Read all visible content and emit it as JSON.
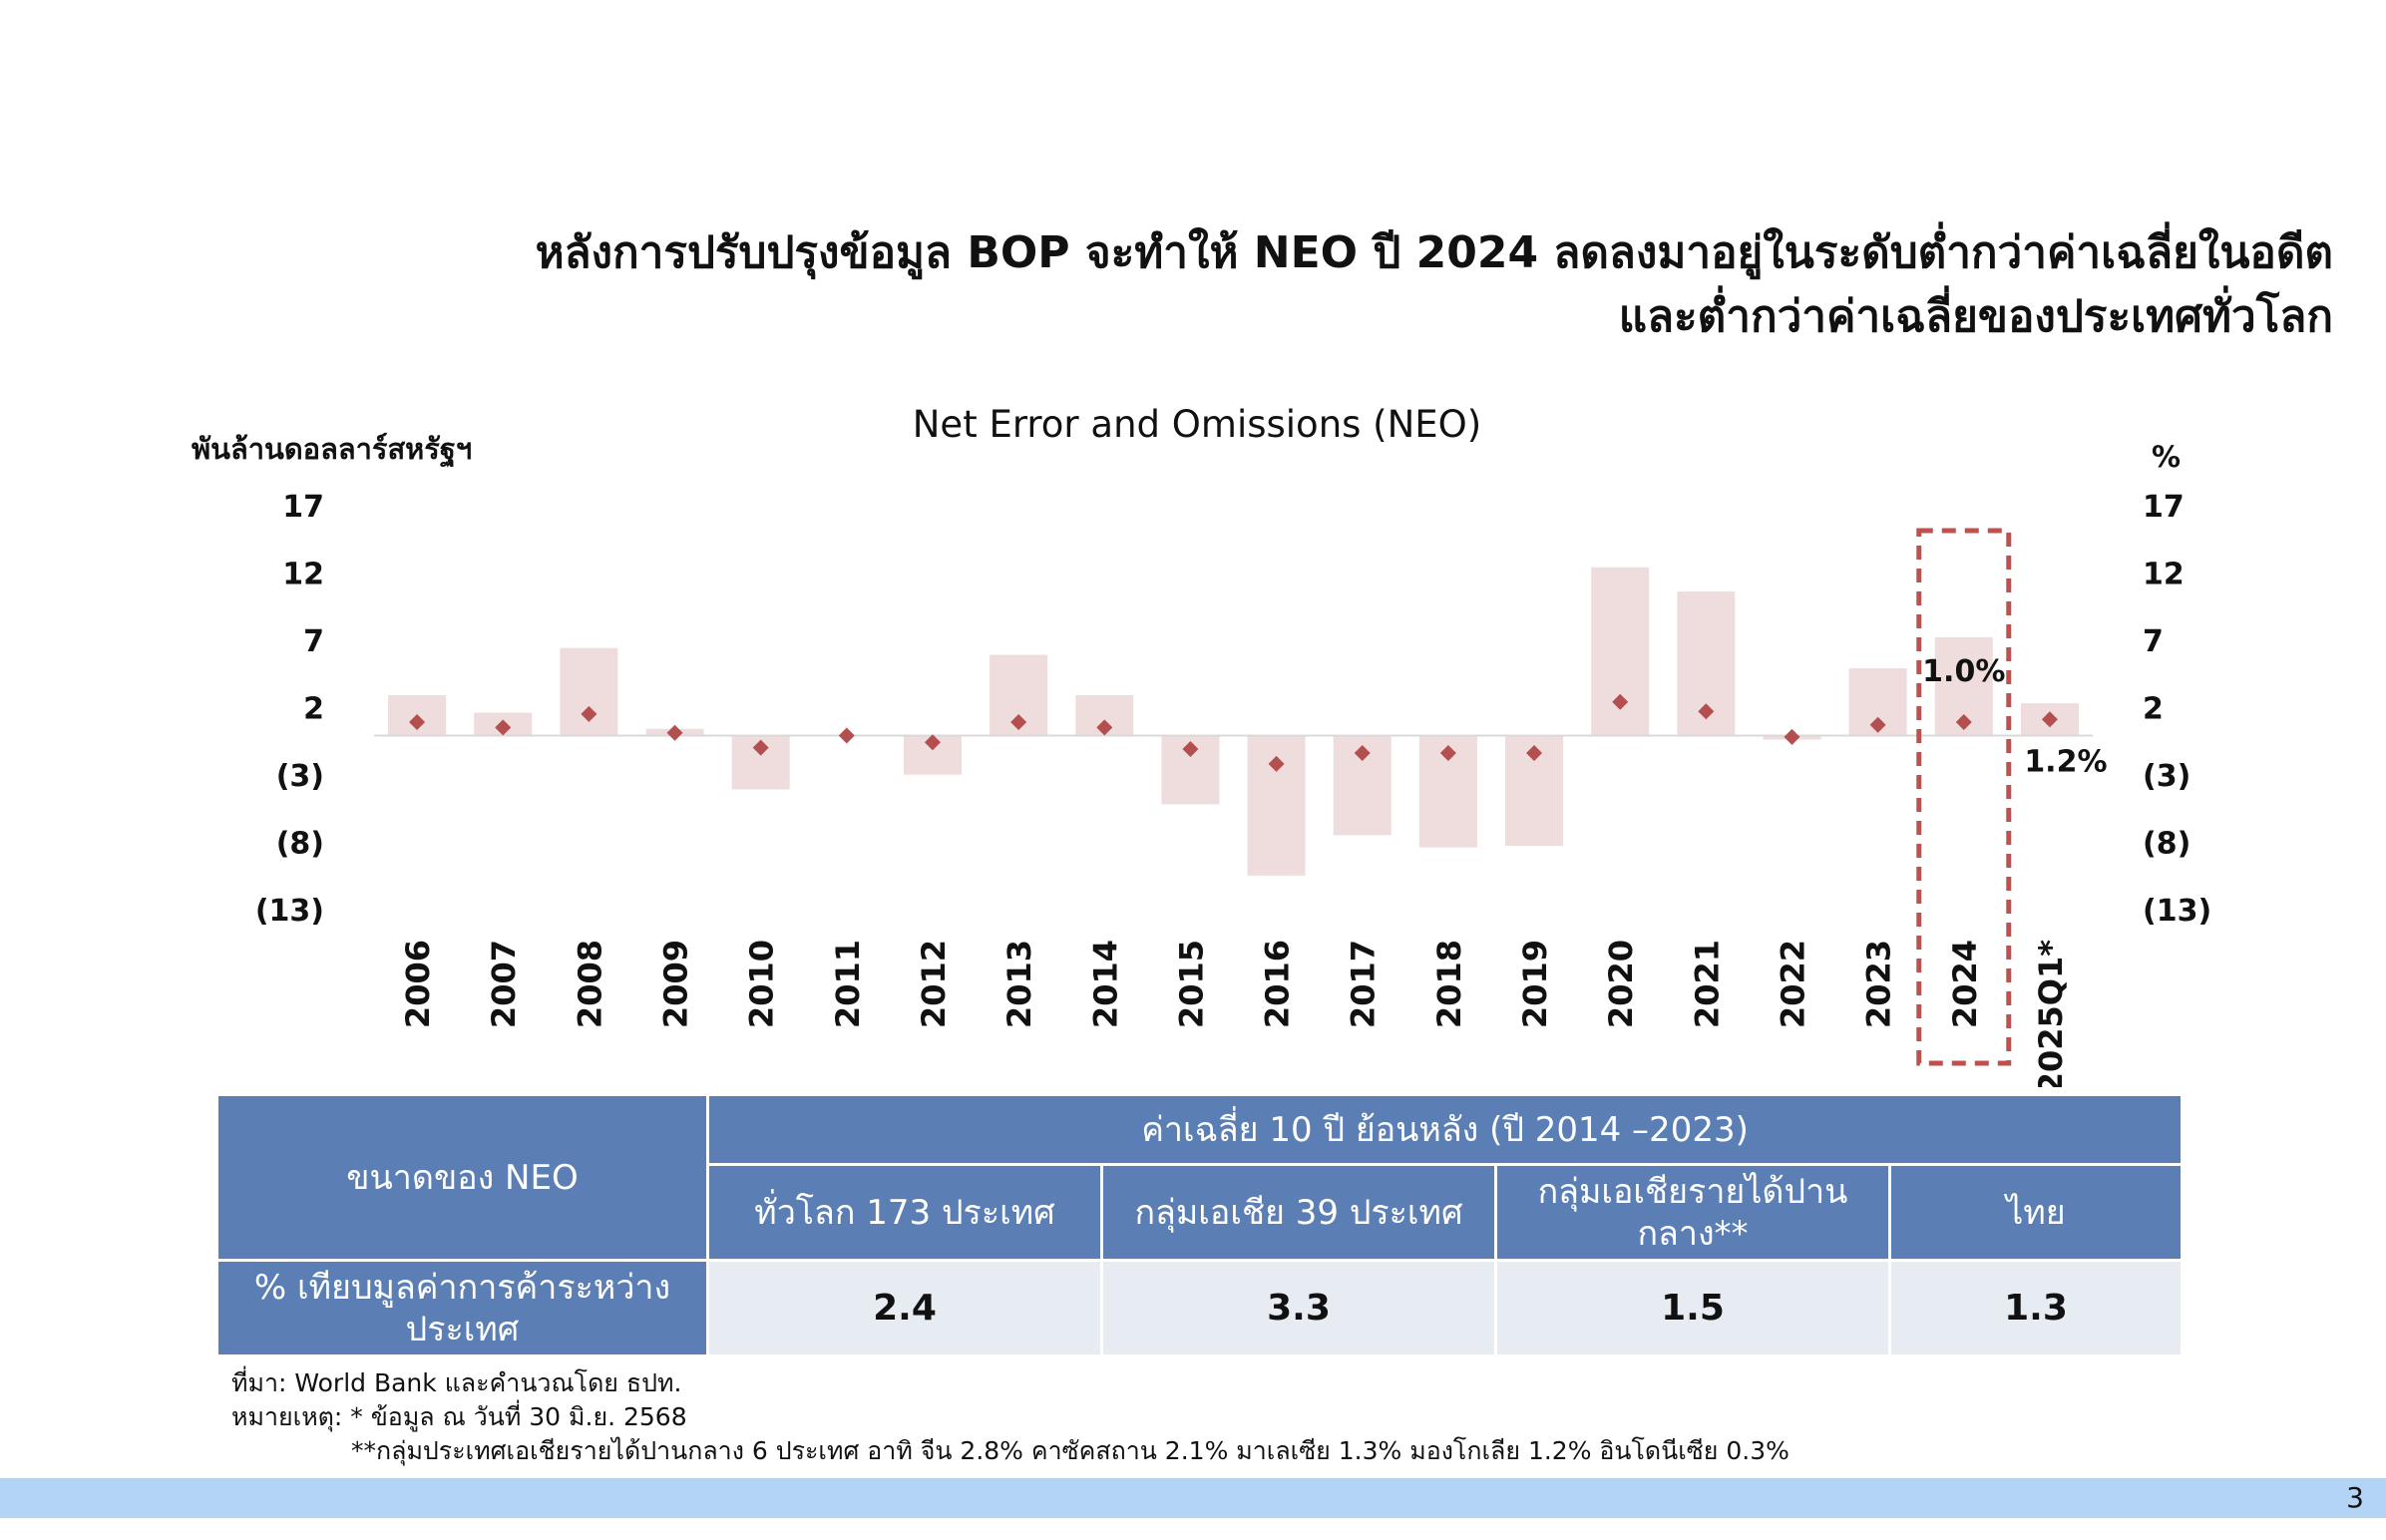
{
  "headline": {
    "line1": "หลังการปรับปรุงข้อมูล BOP จะทำให้ NEO ปี 2024 ลดลงมาอยู่ในระดับต่ำกว่าค่าเฉลี่ยในอดีต",
    "line2": "และต่ำกว่าค่าเฉลี่ยของประเทศทั่วโลก"
  },
  "chart_data": {
    "type": "bar",
    "title": "Net Error and Omissions (NEO)",
    "ylabel_left": "พันล้านดอลลาร์สหรัฐฯ",
    "ylabel_right": "%",
    "ylim": [
      -13,
      17
    ],
    "left_ticks": [
      "17",
      "12",
      "7",
      "2",
      "(3)",
      "(8)",
      "(13)"
    ],
    "right_ticks": [
      "17",
      "12",
      "7",
      "2",
      "(3)",
      "(8)",
      "(13)"
    ],
    "categories": [
      "2006",
      "2007",
      "2008",
      "2009",
      "2010",
      "2011",
      "2012",
      "2013",
      "2014",
      "2015",
      "2016",
      "2017",
      "2018",
      "2019",
      "2020",
      "2021",
      "2022",
      "2023",
      "2024",
      "2025Q1*"
    ],
    "series": [
      {
        "kind": "bar",
        "values": [
          3.0,
          1.7,
          6.5,
          0.5,
          -4.0,
          0.0,
          -2.9,
          6.0,
          3.0,
          -5.1,
          -10.4,
          -7.4,
          -8.3,
          -8.2,
          12.5,
          10.7,
          -0.3,
          5.0,
          7.3,
          2.4
        ]
      },
      {
        "kind": "marker",
        "values": [
          1.0,
          0.6,
          1.6,
          0.2,
          -0.9,
          0.0,
          -0.5,
          1.0,
          0.6,
          -1.0,
          -2.1,
          -1.3,
          -1.3,
          -1.3,
          2.5,
          1.8,
          -0.1,
          0.8,
          1.0,
          1.2
        ]
      }
    ],
    "annotations": [
      {
        "category": "2024",
        "text": "1.0%"
      },
      {
        "category": "2025Q1*",
        "text": "1.2%"
      }
    ],
    "highlight": "2024",
    "colors": {
      "bar": "#efdcdc",
      "marker": "#b34f4f",
      "highlight": "#c0504d"
    }
  },
  "table": {
    "row_header": "ขนาดของ NEO",
    "group_header": "ค่าเฉลี่ย 10 ปี ย้อนหลัง (ปี 2014 –2023)",
    "columns": [
      "ทั่วโลก 173 ประเทศ",
      "กลุ่มเอเชีย 39 ประเทศ",
      "กลุ่มเอเชียรายได้ปานกลาง**",
      "ไทย"
    ],
    "row_label": "% เทียบมูลค่าการค้าระหว่างประเทศ",
    "values": [
      "2.4",
      "3.3",
      "1.5",
      "1.3"
    ],
    "colors": {
      "header": "#5b7fb5",
      "cell": "#e7ebf2"
    }
  },
  "notes": {
    "source": "ที่มา: World Bank และคำนวณโดย ธปท.",
    "note1": "หมายเหตุ: * ข้อมูล ณ วันที่ 30 มิ.ย. 2568",
    "note2": "**กลุ่มประเทศเอเชียรายได้ปานกลาง 6 ประเทศ อาทิ จีน 2.8% คาซัคสถาน 2.1% มาเลเซีย 1.3% มองโกเลีย 1.2% อินโดนีเซีย 0.3%"
  },
  "page_number": "3",
  "footer_color": "#b4d4f5"
}
